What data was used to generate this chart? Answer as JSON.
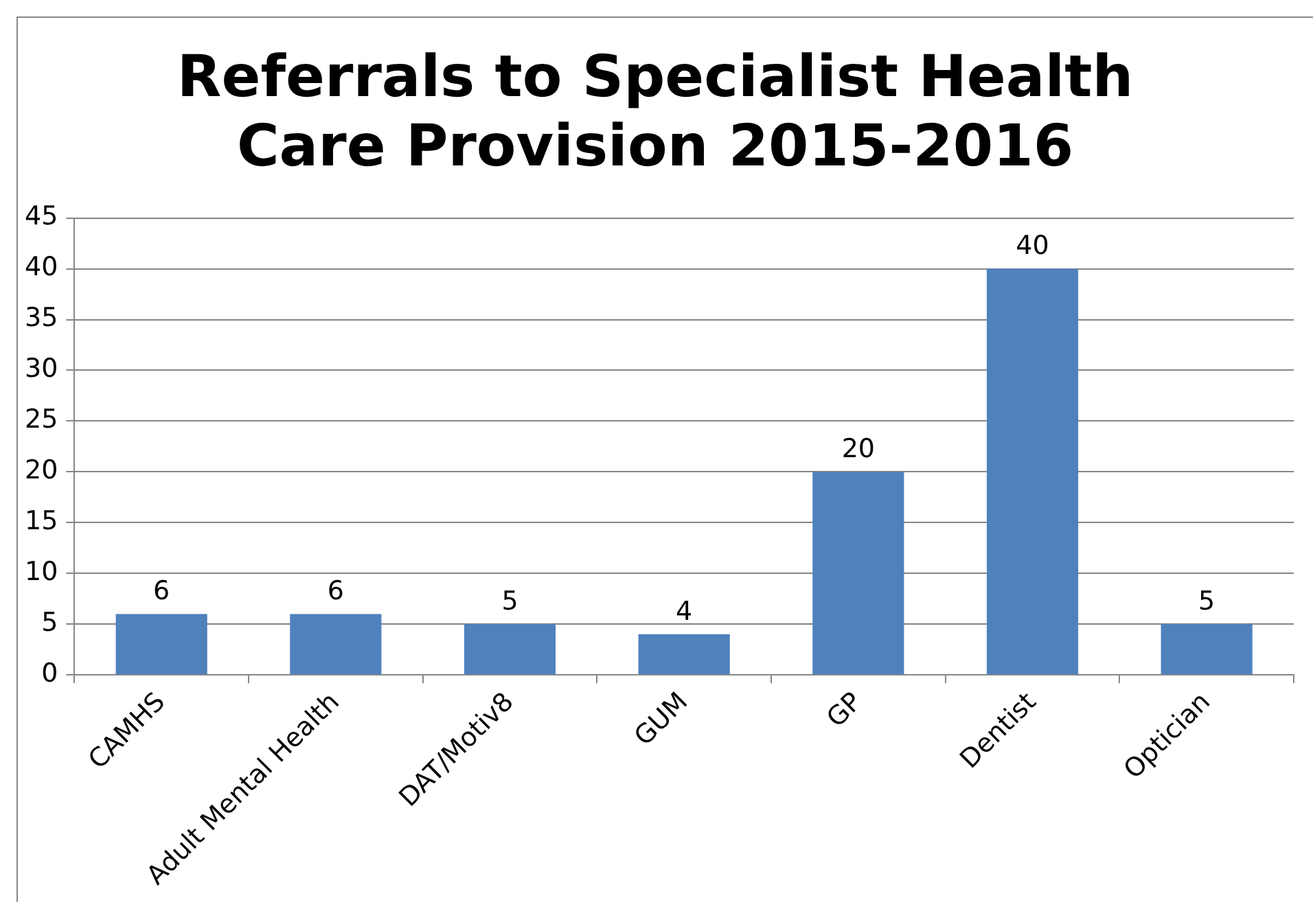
{
  "chart_data": {
    "type": "bar",
    "title": "Referrals to Specialist Health Care Provision 2015-2016",
    "categories": [
      "CAMHS",
      "Adult Mental Health",
      "DAT/Motiv8",
      "GUM",
      "GP",
      "Dentist",
      "Optician"
    ],
    "values": [
      6,
      6,
      5,
      4,
      20,
      40,
      5
    ],
    "color": "#4f81bd",
    "ylim": [
      0,
      45
    ],
    "yticks": [
      0,
      5,
      10,
      15,
      20,
      25,
      30,
      35,
      40,
      45
    ],
    "grid": "y",
    "data_labels": true,
    "legend": false
  }
}
